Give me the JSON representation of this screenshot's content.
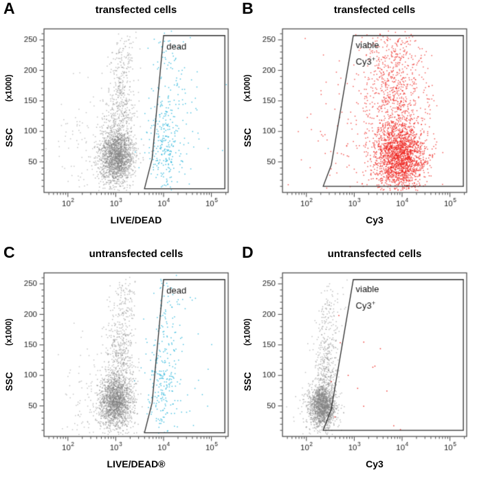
{
  "style": {
    "background": "#ffffff",
    "axis_color": "#3f3f3f",
    "tick_label_color": "#1c1c1c",
    "gate_color": "#2a2a2a",
    "gate_text_color": "#111111",
    "gray_population_color": "#7f7f7f",
    "dead_population_color": "#30b7dc",
    "cy3_population_color": "#ed1f1a"
  },
  "chart_data": [
    {
      "type": "scatter",
      "panel_letter": "A",
      "title": "transfected cells",
      "xlabel": "LIVE/DEAD",
      "ylabel": "SSC",
      "ylabel_units": "(x1000)",
      "x_scale": "log10",
      "x_range_log10": [
        1.5,
        5.35
      ],
      "y_range": [
        0,
        268
      ],
      "x_tick_exponents": [
        2,
        3,
        4,
        5
      ],
      "y_ticks": [
        50,
        100,
        150,
        200,
        250
      ],
      "y_minor_step": 10,
      "seed": 101,
      "gate": {
        "label_lines": [
          "dead"
        ],
        "label_pos": {
          "x": 4.06,
          "y": 234
        },
        "label_line_step": 26,
        "polygon": [
          [
            3.6,
            6
          ],
          [
            3.76,
            55
          ],
          [
            4.0,
            257
          ],
          [
            5.28,
            257
          ],
          [
            5.28,
            6
          ]
        ]
      },
      "clusters": [
        {
          "name": "live-cells-core",
          "color": "#7f7f7f",
          "alpha": 0.55,
          "n": 1600,
          "cx": 3.02,
          "cy": 58,
          "sx": 0.17,
          "sy": 22
        },
        {
          "name": "live-cells-upper",
          "color": "#7f7f7f",
          "alpha": 0.5,
          "n": 480,
          "cx": 3.1,
          "cy": 125,
          "sx": 0.15,
          "sy": 45
        },
        {
          "name": "live-cells-top",
          "color": "#7f7f7f",
          "alpha": 0.5,
          "n": 100,
          "cx": 3.17,
          "cy": 218,
          "sx": 0.13,
          "sy": 28
        },
        {
          "name": "debris-sparse",
          "color": "#8a8a8a",
          "alpha": 0.5,
          "n": 150,
          "cx": 2.55,
          "cy": 68,
          "sx": 0.42,
          "sy": 50
        },
        {
          "name": "dead-cells",
          "color": "#30b7dc",
          "alpha": 0.85,
          "n": 250,
          "cx": 4.02,
          "cy": 72,
          "sx": 0.2,
          "sy": 42
        },
        {
          "name": "dead-cells-upper",
          "color": "#30b7dc",
          "alpha": 0.85,
          "n": 85,
          "cx": 4.1,
          "cy": 185,
          "sx": 0.2,
          "sy": 48
        },
        {
          "name": "dead-cells-right",
          "color": "#30b7dc",
          "alpha": 0.85,
          "n": 28,
          "cx": 4.55,
          "cy": 115,
          "sx": 0.26,
          "sy": 70
        }
      ]
    },
    {
      "type": "scatter",
      "panel_letter": "B",
      "title": "transfected cells",
      "xlabel": "Cy3",
      "ylabel": "SSC",
      "ylabel_units": "(x1000)",
      "x_scale": "log10",
      "x_range_log10": [
        1.5,
        5.35
      ],
      "y_range": [
        0,
        268
      ],
      "x_tick_exponents": [
        2,
        3,
        4,
        5
      ],
      "y_ticks": [
        50,
        100,
        150,
        200,
        250
      ],
      "y_minor_step": 10,
      "seed": 202,
      "gate": {
        "label_lines": [
          "viable",
          "Cy3+"
        ],
        "label_pos": {
          "x": 3.03,
          "y": 236
        },
        "label_line_step": 26,
        "polygon": [
          [
            2.35,
            10
          ],
          [
            2.52,
            45
          ],
          [
            2.98,
            257
          ],
          [
            5.28,
            257
          ],
          [
            5.28,
            10
          ]
        ]
      },
      "clusters": [
        {
          "name": "viable-cy3-core",
          "color": "#ed1f1a",
          "alpha": 0.75,
          "n": 1700,
          "cx": 3.95,
          "cy": 58,
          "sx": 0.27,
          "sy": 26
        },
        {
          "name": "viable-cy3-upper",
          "color": "#ed1f1a",
          "alpha": 0.7,
          "n": 760,
          "cx": 3.86,
          "cy": 138,
          "sx": 0.32,
          "sy": 55
        },
        {
          "name": "viable-cy3-top",
          "color": "#ed1f1a",
          "alpha": 0.7,
          "n": 150,
          "cx": 3.8,
          "cy": 226,
          "sx": 0.3,
          "sy": 28
        },
        {
          "name": "cy3-sparse",
          "color": "#ed1f1a",
          "alpha": 0.75,
          "n": 160,
          "cx": 3.2,
          "cy": 95,
          "sx": 0.55,
          "sy": 70
        }
      ]
    },
    {
      "type": "scatter",
      "panel_letter": "C",
      "title": "untransfected cells",
      "xlabel": "LIVE/DEAD®",
      "ylabel": "SSC",
      "ylabel_units": "(x1000)",
      "x_scale": "log10",
      "x_range_log10": [
        1.5,
        5.35
      ],
      "y_range": [
        0,
        268
      ],
      "x_tick_exponents": [
        2,
        3,
        4,
        5
      ],
      "y_ticks": [
        50,
        100,
        150,
        200,
        250
      ],
      "y_minor_step": 10,
      "seed": 303,
      "gate": {
        "label_lines": [
          "dead"
        ],
        "label_pos": {
          "x": 4.06,
          "y": 234
        },
        "label_line_step": 26,
        "polygon": [
          [
            3.6,
            6
          ],
          [
            3.76,
            55
          ],
          [
            4.0,
            257
          ],
          [
            5.28,
            257
          ],
          [
            5.28,
            6
          ]
        ]
      },
      "clusters": [
        {
          "name": "live-cells-core",
          "color": "#7f7f7f",
          "alpha": 0.55,
          "n": 1550,
          "cx": 3.0,
          "cy": 56,
          "sx": 0.17,
          "sy": 22
        },
        {
          "name": "live-cells-upper",
          "color": "#7f7f7f",
          "alpha": 0.5,
          "n": 470,
          "cx": 3.1,
          "cy": 125,
          "sx": 0.15,
          "sy": 45
        },
        {
          "name": "live-cells-top",
          "color": "#7f7f7f",
          "alpha": 0.5,
          "n": 100,
          "cx": 3.17,
          "cy": 220,
          "sx": 0.13,
          "sy": 26
        },
        {
          "name": "debris-sparse",
          "color": "#8a8a8a",
          "alpha": 0.5,
          "n": 140,
          "cx": 2.55,
          "cy": 66,
          "sx": 0.42,
          "sy": 48
        },
        {
          "name": "dead-cells",
          "color": "#30b7dc",
          "alpha": 0.85,
          "n": 210,
          "cx": 3.97,
          "cy": 85,
          "sx": 0.18,
          "sy": 48
        },
        {
          "name": "dead-cells-upper",
          "color": "#30b7dc",
          "alpha": 0.85,
          "n": 75,
          "cx": 4.05,
          "cy": 190,
          "sx": 0.18,
          "sy": 42
        },
        {
          "name": "dead-cells-right",
          "color": "#30b7dc",
          "alpha": 0.85,
          "n": 22,
          "cx": 4.5,
          "cy": 120,
          "sx": 0.28,
          "sy": 70
        }
      ]
    },
    {
      "type": "scatter",
      "panel_letter": "D",
      "title": "untransfected cells",
      "xlabel": "Cy3",
      "ylabel": "SSC",
      "ylabel_units": "(x1000)",
      "x_scale": "log10",
      "x_range_log10": [
        1.5,
        5.35
      ],
      "y_range": [
        0,
        268
      ],
      "x_tick_exponents": [
        2,
        3,
        4,
        5
      ],
      "y_ticks": [
        50,
        100,
        150,
        200,
        250
      ],
      "y_minor_step": 10,
      "seed": 404,
      "gate": {
        "label_lines": [
          "viable",
          "Cy3+"
        ],
        "label_pos": {
          "x": 3.03,
          "y": 236
        },
        "label_line_step": 26,
        "polygon": [
          [
            2.35,
            10
          ],
          [
            2.52,
            45
          ],
          [
            2.98,
            257
          ],
          [
            5.28,
            257
          ],
          [
            5.28,
            10
          ]
        ]
      },
      "clusters": [
        {
          "name": "untransfected-core",
          "color": "#7f7f7f",
          "alpha": 0.55,
          "n": 1400,
          "cx": 2.33,
          "cy": 50,
          "sx": 0.14,
          "sy": 18
        },
        {
          "name": "untransfected-upper",
          "color": "#7f7f7f",
          "alpha": 0.5,
          "n": 360,
          "cx": 2.43,
          "cy": 112,
          "sx": 0.13,
          "sy": 45
        },
        {
          "name": "untransfected-top",
          "color": "#7f7f7f",
          "alpha": 0.5,
          "n": 70,
          "cx": 2.5,
          "cy": 205,
          "sx": 0.12,
          "sy": 30
        },
        {
          "name": "debris-sparse",
          "color": "#8a8a8a",
          "alpha": 0.5,
          "n": 80,
          "cx": 2.2,
          "cy": 62,
          "sx": 0.3,
          "sy": 42
        },
        {
          "name": "cy3-positive-sparse",
          "color": "#ed1f1a",
          "alpha": 0.9,
          "n": 14,
          "cx": 3.4,
          "cy": 100,
          "sx": 0.6,
          "sy": 60
        }
      ]
    }
  ]
}
